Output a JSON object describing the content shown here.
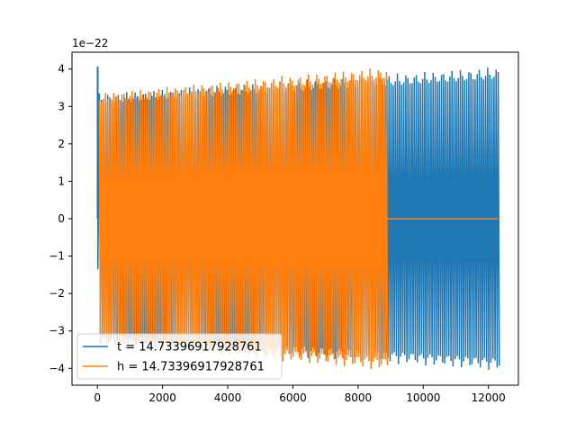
{
  "chart_data": {
    "type": "line",
    "title": "",
    "xlabel": "",
    "ylabel": "",
    "offset_label": "1e−22",
    "xlim": [
      -780,
      12920
    ],
    "ylim": [
      -4.45,
      4.45
    ],
    "x_ticks": [
      0,
      2000,
      4000,
      6000,
      8000,
      10000,
      12000
    ],
    "x_tick_labels": [
      "0",
      "2000",
      "4000",
      "6000",
      "8000",
      "10000",
      "12000"
    ],
    "y_ticks": [
      -4,
      -3,
      -2,
      -1,
      0,
      1,
      2,
      3,
      4
    ],
    "y_tick_labels": [
      "−4",
      "−3",
      "−2",
      "−1",
      "0",
      "1",
      "2",
      "3",
      "4"
    ],
    "grid": false,
    "legend_position": "lower-left",
    "series": [
      {
        "name": "t = 14.73396917928761",
        "color": "#1f77b4",
        "x_start": 0,
        "x_end": 12300,
        "oscillation_cycles": 190,
        "envelope_start": 3.35,
        "envelope_end": 4.07,
        "initial_spike": 4.05
      },
      {
        "name": "h = 14.73396917928761",
        "color": "#ff7f0e",
        "x_start": 0,
        "x_end": 8870,
        "flat_until": 12300,
        "flat_value": 0,
        "oscillation_cycles": 140,
        "envelope_start": 3.37,
        "envelope_end": 4.07
      }
    ]
  }
}
